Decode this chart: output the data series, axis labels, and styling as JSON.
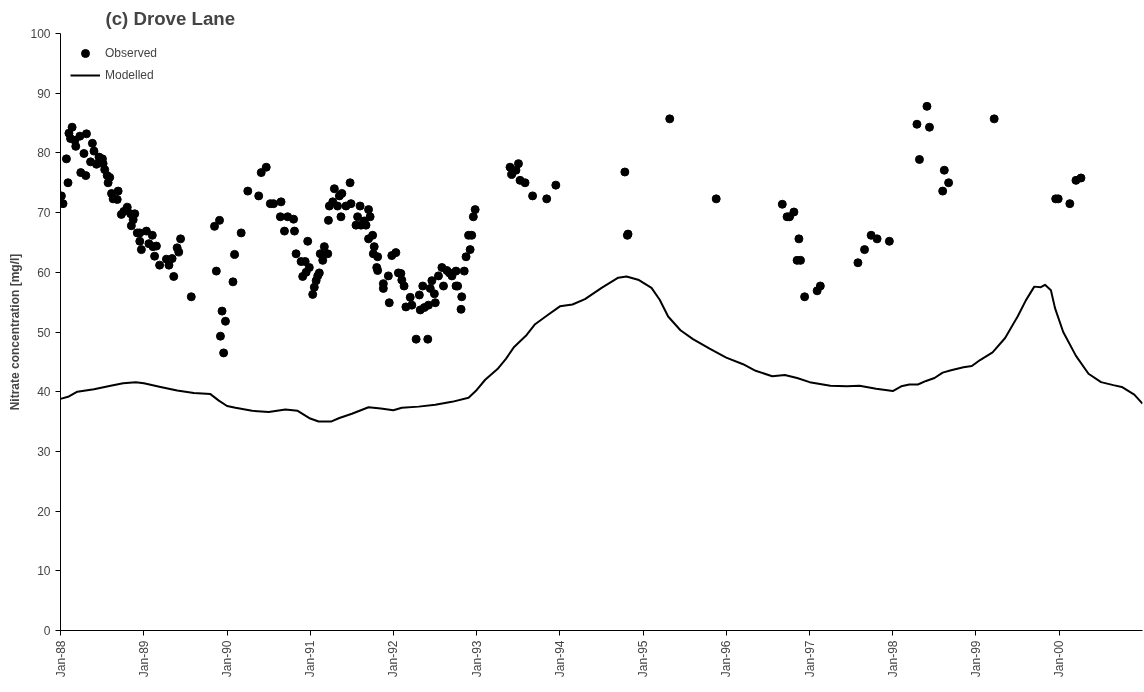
{
  "chart_data": {
    "type": "scatter",
    "title": "(c) Drove Lane",
    "ylabel": "Nitrate concentration [mg/l]",
    "xlim": [
      "1988-01-01",
      "2001-01-01"
    ],
    "ylim": [
      0,
      100
    ],
    "xticks": [
      {
        "value": "1988-01-01",
        "label": "Jan-88"
      },
      {
        "value": "1989-01-01",
        "label": "Jan-89"
      },
      {
        "value": "1990-01-01",
        "label": "Jan-90"
      },
      {
        "value": "1991-01-01",
        "label": "Jan-91"
      },
      {
        "value": "1992-01-01",
        "label": "Jan-92"
      },
      {
        "value": "1993-01-01",
        "label": "Jan-93"
      },
      {
        "value": "1994-01-01",
        "label": "Jan-94"
      },
      {
        "value": "1995-01-01",
        "label": "Jan-95"
      },
      {
        "value": "1996-01-01",
        "label": "Jan-96"
      },
      {
        "value": "1997-01-01",
        "label": "Jan-97"
      },
      {
        "value": "1998-01-01",
        "label": "Jan-98"
      },
      {
        "value": "1999-01-01",
        "label": "Jan-99"
      },
      {
        "value": "2000-01-01",
        "label": "Jan-00"
      }
    ],
    "yticks": [
      0,
      10,
      20,
      30,
      40,
      50,
      60,
      70,
      80,
      90,
      100
    ],
    "grid": false,
    "legend": "top left",
    "series": [
      {
        "name": "Observed",
        "color": "#000000",
        "marker": "circle",
        "x": [
          "1988-01-05",
          "1988-01-12",
          "1988-01-27",
          "1988-02-03",
          "1988-02-07",
          "1988-02-21",
          "1988-02-14",
          "1988-03-04",
          "1988-03-08",
          "1988-03-26",
          "1988-04-13",
          "1988-03-30",
          "1988-04-21",
          "1988-04-24",
          "1988-05-12",
          "1988-05-20",
          "1988-05-27",
          "1988-06-07",
          "1988-06-18",
          "1988-07-03",
          "1988-07-06",
          "1988-07-13",
          "1988-07-24",
          "1988-08-04",
          "1988-07-28",
          "1988-08-12",
          "1988-08-19",
          "1988-09-06",
          "1988-09-10",
          "1988-09-24",
          "1988-10-05",
          "1988-10-20",
          "1988-11-04",
          "1988-11-22",
          "1988-11-15",
          "1988-11-07",
          "1988-12-03",
          "1988-12-14",
          "1988-12-14",
          "1988-12-21",
          "1989-01-12",
          "1989-02-07",
          "1989-01-23",
          "1989-02-10",
          "1989-02-25",
          "1989-02-17",
          "1989-03-11",
          "1989-04-10",
          "1989-04-21",
          "1989-05-05",
          "1989-05-12",
          "1989-05-27",
          "1989-06-03",
          "1989-06-11",
          "1989-07-28",
          "1989-11-07",
          "1989-11-29",
          "1989-11-15",
          "1989-12-10",
          "1989-12-25",
          "1990-02-03",
          "1990-01-27",
          "1990-03-04",
          "1990-04-02",
          "1990-05-20",
          "1990-05-31",
          "1990-06-22",
          "1989-12-03",
          "1989-12-17",
          "1990-07-10",
          "1990-07-24",
          "1990-08-26",
          "1990-08-23",
          "1990-09-24",
          "1990-10-20",
          "1990-09-10",
          "1990-10-24",
          "1990-12-21",
          "1990-10-31",
          "1990-11-22",
          "1990-12-10",
          "1990-12-28",
          "1990-11-29",
          "1990-12-14",
          "1991-01-12",
          "1991-01-19",
          "1991-01-27",
          "1991-02-03",
          "1991-02-10",
          "1991-02-14",
          "1991-03-04",
          "1991-02-25",
          "1991-03-19",
          "1991-03-22",
          "1991-03-26",
          "1991-04-10",
          "1991-04-17",
          "1991-05-01",
          "1991-05-09",
          "1991-05-20",
          "1991-05-16",
          "1991-06-07",
          "1991-06-25",
          "1991-06-29",
          "1991-07-21",
          "1991-07-28",
          "1991-08-08",
          "1991-08-12",
          "1991-08-26",
          "1991-09-03",
          "1991-09-14",
          "1991-09-21",
          "1991-09-14",
          "1991-10-02",
          "1991-10-09",
          "1991-10-05",
          "1991-10-24",
          "1991-10-20",
          "1991-10-24",
          "1991-11-18",
          "1991-11-18",
          "1991-12-10",
          "1991-12-14",
          "1991-12-25",
          "1992-01-12",
          "1992-01-23",
          "1992-02-03",
          "1992-02-07",
          "1992-02-17",
          "1992-02-25",
          "1992-03-15",
          "1992-03-22",
          "1992-04-10",
          "1992-04-24",
          "1992-04-28",
          "1992-05-09",
          "1992-05-16",
          "1992-05-31",
          "1992-06-03",
          "1992-06-11",
          "1992-06-18",
          "1992-06-29",
          "1992-07-03",
          "1992-07-17",
          "1992-08-01",
          "1992-08-08",
          "1992-08-23",
          "1992-09-03",
          "1992-09-14",
          "1992-10-02",
          "1992-10-09",
          "1992-10-02",
          "1992-10-27",
          "1992-10-24",
          "1992-11-07",
          "1992-11-15",
          "1992-12-03",
          "1992-11-26",
          "1992-12-10",
          "1992-12-17",
          "1992-12-25",
          "1993-05-27",
          "1993-07-03",
          "1993-06-22",
          "1993-06-03",
          "1993-07-10",
          "1993-08-01",
          "1993-09-03",
          "1993-11-04",
          "1993-12-14",
          "1994-10-13",
          "1994-10-27",
          "1994-10-24",
          "1995-04-28",
          "1995-11-18",
          "1996-09-03",
          "1996-10-24",
          "1996-09-24",
          "1996-10-05",
          "1996-11-15",
          "1996-11-07",
          "1996-11-22",
          "1996-12-10",
          "1997-02-03",
          "1997-02-17",
          "1997-08-01",
          "1997-08-30",
          "1997-09-28",
          "1997-10-24",
          "1997-12-17",
          "1998-04-17",
          "1998-05-31",
          "1998-06-11",
          "1998-04-28",
          "1998-08-15",
          "1998-09-03",
          "1998-08-08",
          "1999-03-22",
          "1999-12-17",
          "1999-12-28",
          "2000-02-17",
          "2000-03-15",
          "2000-04-06"
        ],
        "values": [
          72.8,
          71.5,
          79.0,
          75.0,
          83.3,
          84.3,
          82.4,
          82.1,
          81.1,
          82.8,
          79.9,
          76.7,
          76.2,
          83.2,
          78.5,
          81.6,
          80.3,
          78.1,
          79.3,
          79.0,
          78.2,
          77.2,
          76.2,
          75.9,
          75.0,
          73.2,
          72.3,
          72.2,
          73.6,
          69.7,
          70.2,
          70.9,
          69.8,
          69.8,
          68.8,
          67.8,
          66.6,
          66.6,
          65.2,
          63.8,
          66.9,
          66.2,
          64.8,
          64.3,
          64.4,
          62.7,
          61.2,
          62.2,
          61.2,
          62.3,
          59.3,
          64.1,
          63.4,
          65.6,
          55.9,
          67.7,
          68.7,
          60.2,
          53.5,
          51.8,
          63.0,
          58.4,
          66.6,
          73.6,
          72.8,
          76.7,
          77.6,
          49.3,
          46.5,
          71.5,
          71.5,
          71.8,
          69.3,
          69.3,
          68.9,
          66.9,
          66.9,
          65.2,
          63.1,
          61.8,
          61.8,
          60.8,
          59.3,
          60.0,
          56.3,
          57.5,
          58.6,
          59.4,
          59.9,
          63.1,
          64.3,
          62.0,
          63.1,
          68.7,
          71.1,
          71.8,
          74.0,
          71.1,
          72.8,
          73.2,
          69.3,
          71.1,
          75.0,
          71.5,
          67.9,
          69.3,
          71.1,
          67.9,
          68.6,
          67.9,
          70.5,
          69.3,
          65.6,
          66.2,
          64.3,
          63.1,
          62.6,
          60.8,
          60.3,
          58.1,
          57.3,
          59.4,
          54.9,
          62.8,
          63.3,
          59.9,
          59.8,
          58.7,
          57.7,
          54.2,
          55.8,
          54.5,
          48.8,
          56.2,
          53.7,
          57.7,
          54.1,
          48.8,
          54.5,
          57.3,
          58.6,
          56.4,
          54.9,
          59.4,
          60.8,
          57.7,
          60.3,
          59.9,
          59.4,
          57.7,
          57.7,
          60.2,
          55.9,
          53.8,
          60.2,
          62.6,
          63.8,
          66.2,
          66.2,
          69.3,
          70.5,
          77.6,
          78.2,
          77.1,
          76.4,
          75.4,
          75.0,
          72.8,
          72.3,
          74.6,
          76.8,
          66.4,
          66.2,
          85.7,
          72.3,
          71.4,
          70.1,
          69.3,
          69.3,
          65.6,
          62.0,
          62.0,
          55.9,
          56.9,
          57.7,
          61.6,
          63.8,
          66.2,
          65.6,
          65.2,
          84.8,
          87.8,
          84.3,
          78.9,
          77.1,
          75.0,
          73.6,
          85.7,
          72.3,
          72.3,
          71.5,
          75.4,
          75.8
        ]
      },
      {
        "name": "Modelled",
        "type": "line",
        "color": "#000000",
        "marker": "none",
        "x": [
          "1988-01-01",
          "1988-02-07",
          "1988-03-15",
          "1988-05-27",
          "1988-08-08",
          "1988-10-02",
          "1988-11-26",
          "1989-01-01",
          "1989-03-15",
          "1989-05-27",
          "1989-08-08",
          "1989-10-20",
          "1989-11-26",
          "1990-01-01",
          "1990-02-07",
          "1990-04-21",
          "1990-07-03",
          "1990-09-14",
          "1990-11-07",
          "1991-01-01",
          "1991-02-07",
          "1991-04-02",
          "1991-05-09",
          "1991-07-03",
          "1991-09-14",
          "1991-11-07",
          "1992-01-01",
          "1992-02-07",
          "1992-04-21",
          "1992-07-03",
          "1992-09-14",
          "1992-11-26",
          "1993-01-01",
          "1993-02-07",
          "1993-04-02",
          "1993-05-09",
          "1993-06-14",
          "1993-08-08",
          "1993-09-14",
          "1993-11-07",
          "1994-01-01",
          "1994-02-25",
          "1994-04-21",
          "1994-07-03",
          "1994-09-14",
          "1994-10-20",
          "1994-12-14",
          "1995-02-07",
          "1995-03-15",
          "1995-04-21",
          "1995-06-14",
          "1995-08-08",
          "1995-10-20",
          "1996-01-01",
          "1996-03-15",
          "1996-05-09",
          "1996-07-21",
          "1996-09-14",
          "1996-11-07",
          "1997-01-01",
          "1997-04-02",
          "1997-06-14",
          "1997-08-08",
          "1997-10-20",
          "1998-01-01",
          "1998-02-07",
          "1998-03-15",
          "1998-04-21",
          "1998-05-27",
          "1998-07-03",
          "1998-08-08",
          "1998-09-14",
          "1998-11-07",
          "1998-12-14",
          "1999-01-19",
          "1999-03-15",
          "1999-05-09",
          "1999-07-03",
          "1999-08-08",
          "1999-09-14",
          "1999-10-13",
          "1999-10-31",
          "1999-11-26",
          "1999-12-14",
          "2000-01-19",
          "2000-03-15",
          "2000-05-09",
          "2000-07-03",
          "2000-08-26",
          "2000-10-02",
          "2000-11-26",
          "2001-01-01"
        ],
        "values": [
          38.8,
          39.2,
          40.0,
          40.4,
          41.0,
          41.4,
          41.6,
          41.4,
          40.8,
          40.2,
          39.8,
          39.6,
          38.5,
          37.6,
          37.3,
          36.8,
          36.6,
          37.0,
          36.8,
          35.5,
          35.0,
          35.0,
          35.6,
          36.3,
          37.4,
          37.2,
          36.9,
          37.3,
          37.5,
          37.8,
          38.3,
          39.0,
          40.3,
          42.0,
          43.8,
          45.5,
          47.5,
          49.5,
          51.3,
          52.8,
          54.3,
          54.6,
          55.5,
          57.4,
          59.1,
          59.3,
          58.7,
          57.4,
          55.4,
          52.6,
          50.3,
          48.8,
          47.2,
          45.7,
          44.6,
          43.5,
          42.6,
          42.8,
          42.3,
          41.6,
          41.0,
          40.9,
          41.0,
          40.5,
          40.1,
          40.9,
          41.2,
          41.2,
          41.8,
          42.3,
          43.2,
          43.6,
          44.1,
          44.3,
          45.3,
          46.6,
          49.0,
          52.6,
          55.3,
          57.6,
          57.5,
          57.9,
          57.0,
          54.0,
          50.0,
          46.0,
          43.0,
          41.6,
          41.1,
          40.8,
          39.5,
          38.0
        ]
      }
    ]
  }
}
